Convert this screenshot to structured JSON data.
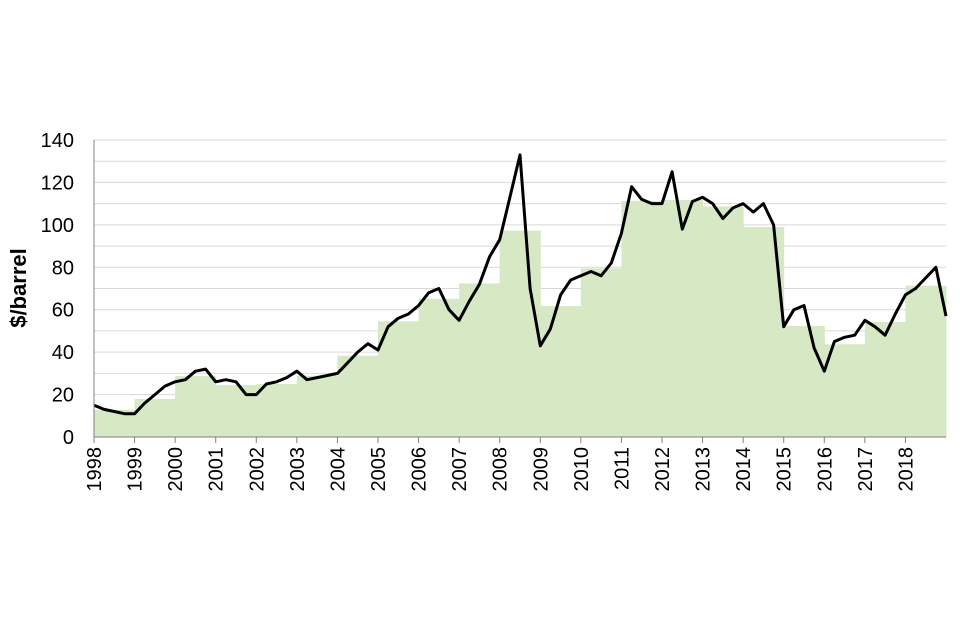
{
  "chart_data": {
    "type": "line",
    "title": "",
    "xlabel": "",
    "ylabel": "$/barrel",
    "xlim": [
      1998,
      2019
    ],
    "ylim": [
      0,
      140
    ],
    "yticks": [
      0,
      20,
      40,
      60,
      80,
      100,
      120,
      140
    ],
    "categories": [
      "1998",
      "1999",
      "2000",
      "2001",
      "2002",
      "2003",
      "2004",
      "2005",
      "2006",
      "2007",
      "2008",
      "2009",
      "2010",
      "2011",
      "2012",
      "2013",
      "2014",
      "2015",
      "2016",
      "2017",
      "2018"
    ],
    "grid": true,
    "legend": "none",
    "colors": {
      "line": "#000000",
      "area": "#d6e8c4",
      "grid": "#d9d9d9"
    },
    "series": [
      {
        "type": "step-area",
        "x": [
          1998,
          1999,
          2000,
          2001,
          2002,
          2003,
          2004,
          2005,
          2006,
          2007,
          2008,
          2009,
          2010,
          2011,
          2012,
          2013,
          2014,
          2015,
          2016,
          2017,
          2018
        ],
        "values": [
          12.8,
          17.9,
          28.7,
          24.5,
          25.0,
          28.9,
          38.3,
          54.5,
          65.1,
          72.4,
          97.3,
          61.7,
          79.5,
          111.3,
          111.7,
          108.7,
          99.0,
          52.4,
          43.7,
          54.2,
          71.3
        ]
      },
      {
        "type": "line",
        "x": [
          1998.0,
          1998.25,
          1998.5,
          1998.75,
          1999.0,
          1999.25,
          1999.5,
          1999.75,
          2000.0,
          2000.25,
          2000.5,
          2000.75,
          2001.0,
          2001.25,
          2001.5,
          2001.75,
          2002.0,
          2002.25,
          2002.5,
          2002.75,
          2003.0,
          2003.25,
          2003.5,
          2003.75,
          2004.0,
          2004.25,
          2004.5,
          2004.75,
          2005.0,
          2005.25,
          2005.5,
          2005.75,
          2006.0,
          2006.25,
          2006.5,
          2006.75,
          2007.0,
          2007.25,
          2007.5,
          2007.75,
          2008.0,
          2008.25,
          2008.5,
          2008.75,
          2009.0,
          2009.25,
          2009.5,
          2009.75,
          2010.0,
          2010.25,
          2010.5,
          2010.75,
          2011.0,
          2011.25,
          2011.5,
          2011.75,
          2012.0,
          2012.25,
          2012.5,
          2012.75,
          2013.0,
          2013.25,
          2013.5,
          2013.75,
          2014.0,
          2014.25,
          2014.5,
          2014.75,
          2015.0,
          2015.25,
          2015.5,
          2015.75,
          2016.0,
          2016.25,
          2016.5,
          2016.75,
          2017.0,
          2017.25,
          2017.5,
          2017.75,
          2018.0,
          2018.25,
          2018.5,
          2018.75,
          2019.0
        ],
        "values": [
          15,
          13,
          12,
          11,
          11,
          16,
          20,
          24,
          26,
          27,
          31,
          32,
          26,
          27,
          26,
          20,
          20,
          25,
          26,
          28,
          31,
          27,
          28,
          29,
          30,
          35,
          40,
          44,
          41,
          52,
          56,
          58,
          62,
          68,
          70,
          60,
          55,
          64,
          72,
          85,
          93,
          113,
          133,
          70,
          43,
          51,
          67,
          74,
          76,
          78,
          76,
          82,
          96,
          118,
          112,
          110,
          110,
          125,
          98,
          111,
          113,
          110,
          103,
          108,
          110,
          106,
          110,
          100,
          52,
          60,
          62,
          42,
          31,
          45,
          47,
          48,
          55,
          52,
          48,
          58,
          67,
          70,
          75,
          80,
          57
        ]
      }
    ]
  }
}
